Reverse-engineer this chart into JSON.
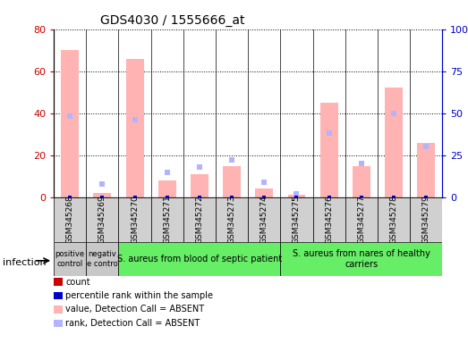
{
  "title": "GDS4030 / 1555666_at",
  "samples": [
    "GSM345268",
    "GSM345269",
    "GSM345270",
    "GSM345271",
    "GSM345272",
    "GSM345273",
    "GSM345274",
    "GSM345275",
    "GSM345276",
    "GSM345277",
    "GSM345278",
    "GSM345279"
  ],
  "absent_value": [
    70,
    2,
    66,
    8,
    11,
    15,
    4,
    1,
    45,
    15,
    52,
    26
  ],
  "absent_rank": [
    48,
    8,
    46,
    15,
    18,
    22,
    9,
    2,
    38,
    20,
    50,
    30
  ],
  "count_color": "#cc0000",
  "percentile_color": "#0000cc",
  "absent_value_color": "#ffb3b3",
  "absent_rank_color": "#b3b3ff",
  "ylim_left": [
    0,
    80
  ],
  "ylim_right": [
    0,
    100
  ],
  "yticks_left": [
    0,
    20,
    40,
    60,
    80
  ],
  "yticks_right": [
    0,
    25,
    50,
    75,
    100
  ],
  "ytick_labels_right": [
    "0",
    "25",
    "50",
    "75",
    "100%"
  ],
  "group_info": [
    {
      "start": 0,
      "end": 1,
      "color": "#c8c8c8",
      "label": "positive\ncontrol"
    },
    {
      "start": 1,
      "end": 2,
      "color": "#c8c8c8",
      "label": "negativ\ne contro"
    },
    {
      "start": 2,
      "end": 7,
      "color": "#66ee66",
      "label": "S. aureus from blood of septic patient"
    },
    {
      "start": 7,
      "end": 12,
      "color": "#66ee66",
      "label": "S. aureus from nares of healthy\ncarriers"
    }
  ],
  "legend_items": [
    {
      "color": "#cc0000",
      "label": "count"
    },
    {
      "color": "#0000cc",
      "label": "percentile rank within the sample"
    },
    {
      "color": "#ffb3b3",
      "label": "value, Detection Call = ABSENT"
    },
    {
      "color": "#b3b3ff",
      "label": "rank, Detection Call = ABSENT"
    }
  ],
  "infection_label": "infection"
}
